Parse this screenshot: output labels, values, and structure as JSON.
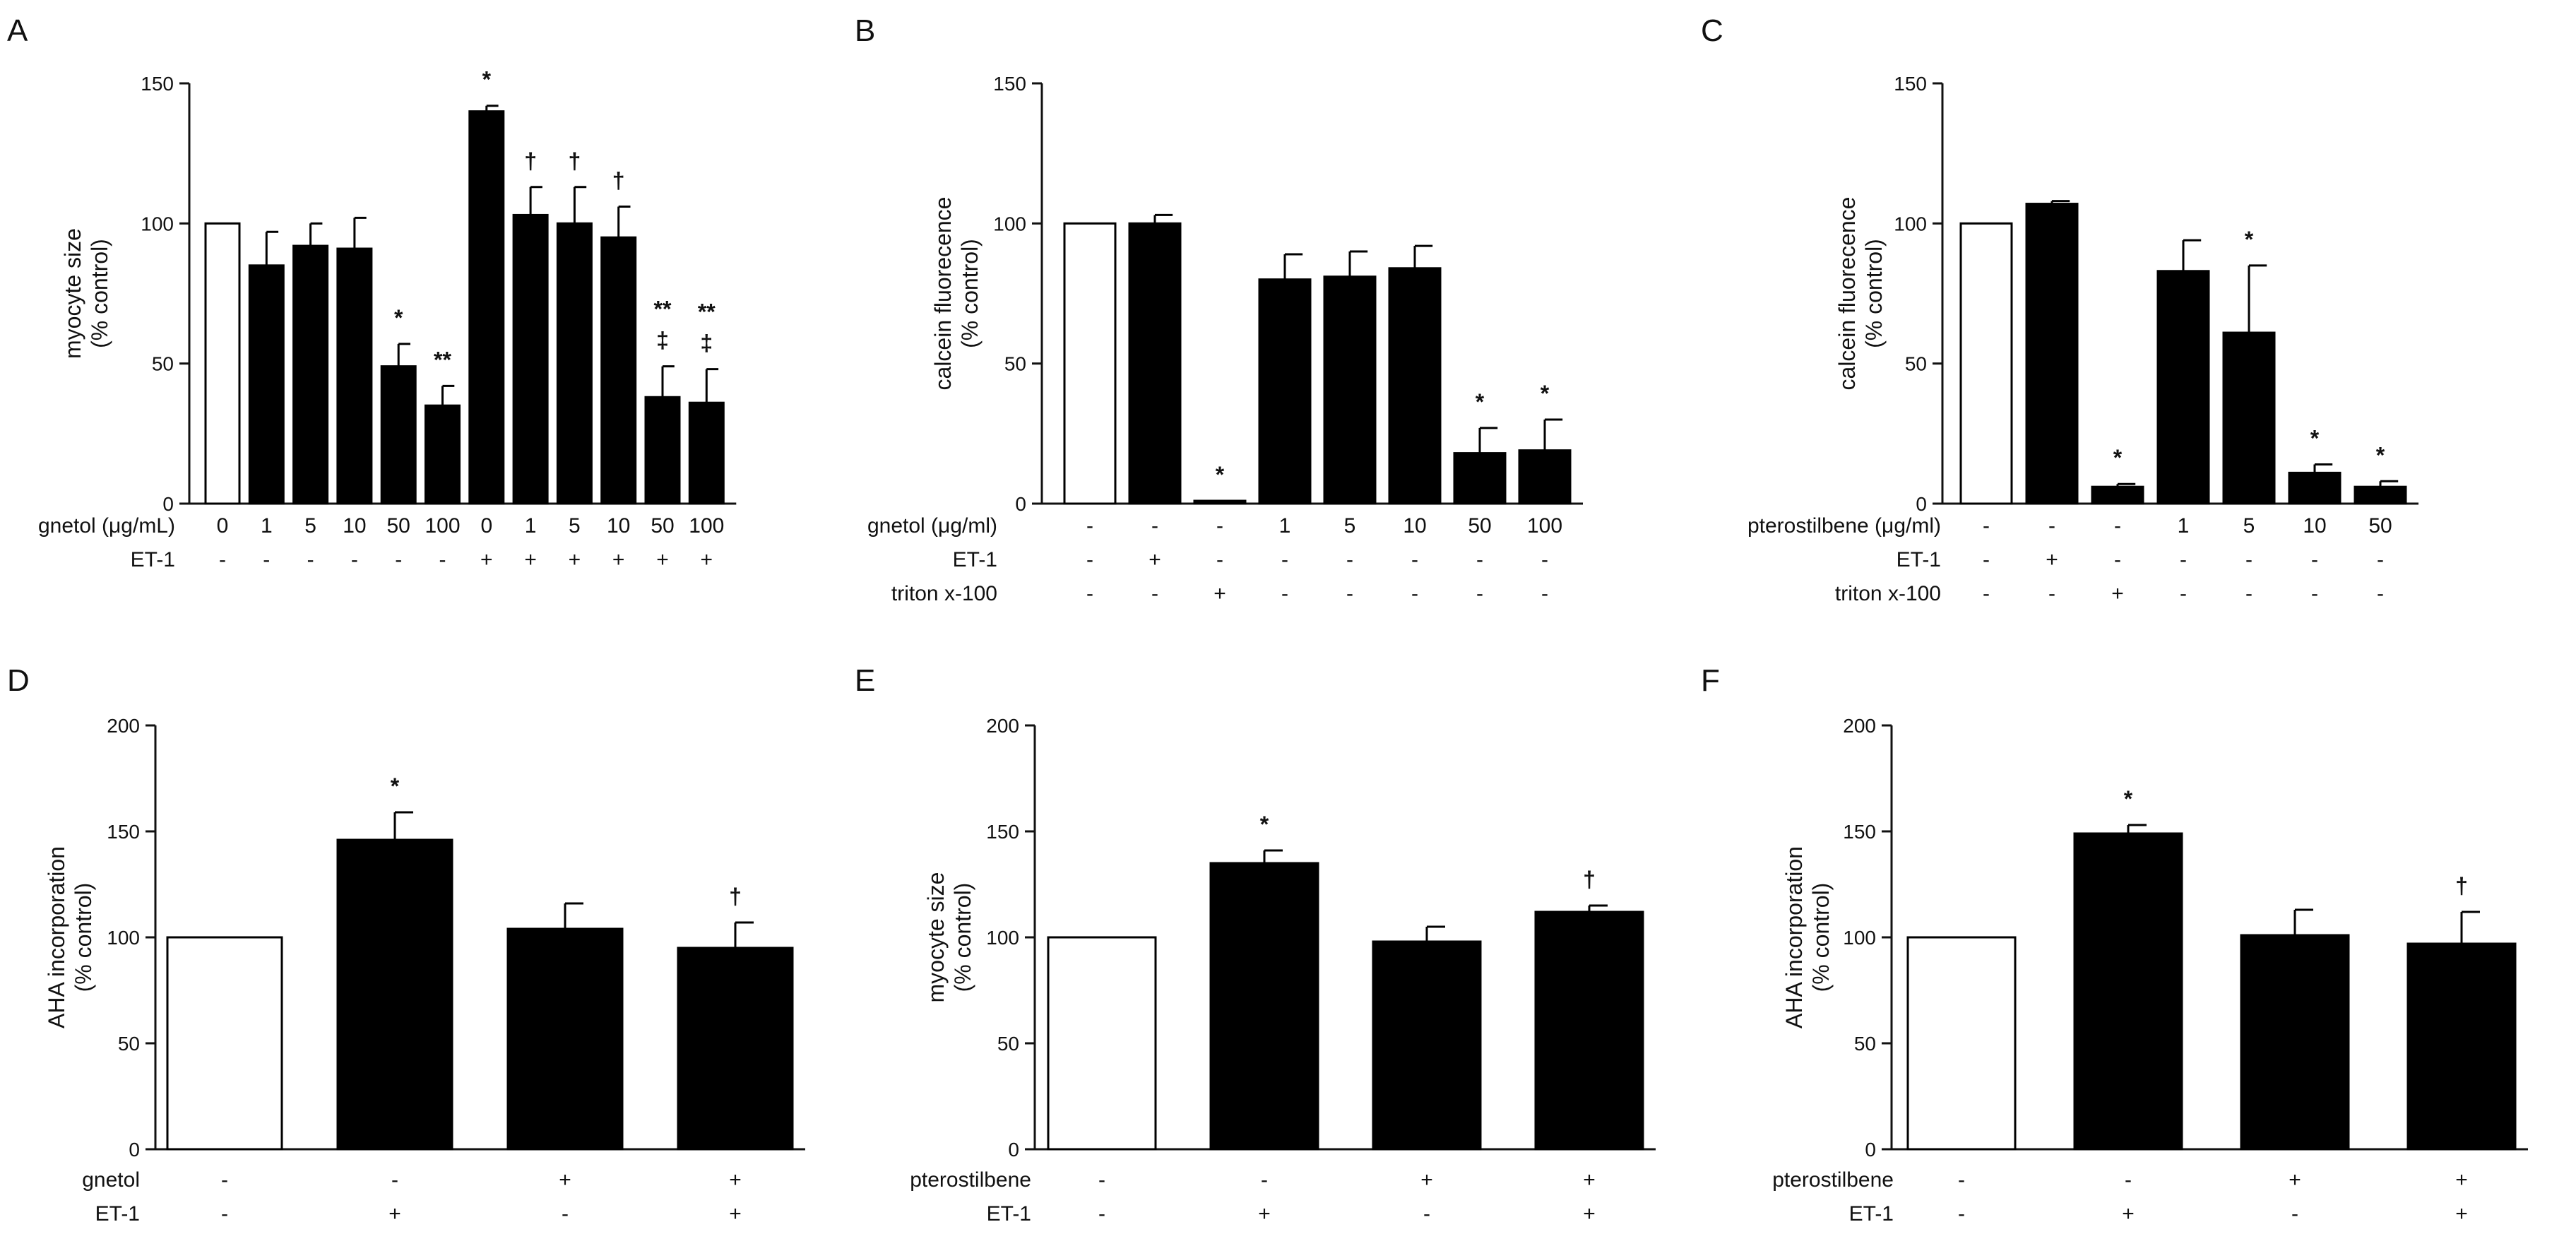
{
  "chart_data": [
    {
      "panel": "A",
      "type": "bar",
      "ylabel": "myocyte size\n(% control)",
      "ylim": [
        0,
        150
      ],
      "yticks": [
        0,
        50,
        100,
        150
      ],
      "values": [
        100,
        85,
        92,
        91,
        49,
        35,
        140,
        103,
        100,
        95,
        38,
        36
      ],
      "errors": [
        0,
        12,
        8,
        11,
        8,
        7,
        2,
        10,
        13,
        11,
        11,
        12
      ],
      "fills": [
        "white",
        "black",
        "black",
        "black",
        "black",
        "black",
        "black",
        "black",
        "black",
        "black",
        "black",
        "black"
      ],
      "annotations": [
        [
          ""
        ],
        [
          ""
        ],
        [
          ""
        ],
        [
          ""
        ],
        [
          "*"
        ],
        [
          "**"
        ],
        [
          "*"
        ],
        [
          "†"
        ],
        [
          "†"
        ],
        [
          "†"
        ],
        [
          "**",
          "‡"
        ],
        [
          "**",
          "‡"
        ]
      ],
      "rows": [
        {
          "label": "gnetol (μg/mL)",
          "values": [
            "0",
            "1",
            "5",
            "10",
            "50",
            "100",
            "0",
            "1",
            "5",
            "10",
            "50",
            "100"
          ]
        },
        {
          "label": "ET-1",
          "values": [
            "-",
            "-",
            "-",
            "-",
            "-",
            "-",
            "+",
            "+",
            "+",
            "+",
            "+",
            "+"
          ]
        }
      ]
    },
    {
      "panel": "B",
      "type": "bar",
      "ylabel": "calcein fluorecence\n(% control)",
      "ylim": [
        0,
        150
      ],
      "yticks": [
        0,
        50,
        100,
        150
      ],
      "values": [
        100,
        100,
        1,
        80,
        81,
        84,
        18,
        19
      ],
      "errors": [
        0,
        3,
        0,
        9,
        9,
        8,
        9,
        11
      ],
      "fills": [
        "white",
        "black",
        "black",
        "black",
        "black",
        "black",
        "black",
        "black"
      ],
      "annotations": [
        [
          ""
        ],
        [
          ""
        ],
        [
          "*"
        ],
        [
          ""
        ],
        [
          ""
        ],
        [
          ""
        ],
        [
          "*"
        ],
        [
          "*"
        ]
      ],
      "rows": [
        {
          "label": "gnetol (μg/ml)",
          "values": [
            "-",
            "-",
            "-",
            "1",
            "5",
            "10",
            "50",
            "100"
          ]
        },
        {
          "label": "ET-1",
          "values": [
            "-",
            "+",
            "-",
            "-",
            "-",
            "-",
            "-",
            "-"
          ]
        },
        {
          "label": "triton x-100",
          "values": [
            "-",
            "-",
            "+",
            "-",
            "-",
            "-",
            "-",
            "-"
          ]
        }
      ]
    },
    {
      "panel": "C",
      "type": "bar",
      "ylabel": "calcein fluorecence\n(% control)",
      "ylim": [
        0,
        150
      ],
      "yticks": [
        0,
        50,
        100,
        150
      ],
      "values": [
        100,
        107,
        6,
        83,
        61,
        11,
        6
      ],
      "errors": [
        0,
        1,
        1,
        11,
        24,
        3,
        2
      ],
      "fills": [
        "white",
        "black",
        "black",
        "black",
        "black",
        "black",
        "black"
      ],
      "annotations": [
        [
          ""
        ],
        [
          ""
        ],
        [
          "*"
        ],
        [
          ""
        ],
        [
          "*"
        ],
        [
          "*"
        ],
        [
          "*"
        ]
      ],
      "rows": [
        {
          "label": "pterostilbene (μg/ml)",
          "values": [
            "-",
            "-",
            "-",
            "1",
            "5",
            "10",
            "50"
          ]
        },
        {
          "label": "ET-1",
          "values": [
            "-",
            "+",
            "-",
            "-",
            "-",
            "-",
            "-"
          ]
        },
        {
          "label": "triton x-100",
          "values": [
            "-",
            "-",
            "+",
            "-",
            "-",
            "-",
            "-"
          ]
        }
      ]
    },
    {
      "panel": "D",
      "type": "bar",
      "ylabel": "AHA incorporation\n(% control)",
      "ylim": [
        0,
        200
      ],
      "yticks": [
        0,
        50,
        100,
        150,
        200
      ],
      "values": [
        100,
        146,
        104,
        95
      ],
      "errors": [
        0,
        13,
        12,
        12
      ],
      "fills": [
        "white",
        "black",
        "black",
        "black"
      ],
      "annotations": [
        [
          ""
        ],
        [
          "*"
        ],
        [
          ""
        ],
        [
          "†"
        ]
      ],
      "rows": [
        {
          "label": "gnetol",
          "values": [
            "-",
            "-",
            "+",
            "+"
          ]
        },
        {
          "label": "ET-1",
          "values": [
            "-",
            "+",
            "-",
            "+"
          ]
        }
      ]
    },
    {
      "panel": "E",
      "type": "bar",
      "ylabel": "myocyte size\n(% control)",
      "ylim": [
        0,
        200
      ],
      "yticks": [
        0,
        50,
        100,
        150,
        200
      ],
      "values": [
        100,
        135,
        98,
        112
      ],
      "errors": [
        0,
        6,
        7,
        3
      ],
      "fills": [
        "white",
        "black",
        "black",
        "black"
      ],
      "annotations": [
        [
          ""
        ],
        [
          "*"
        ],
        [
          ""
        ],
        [
          "†"
        ]
      ],
      "rows": [
        {
          "label": "pterostilbene",
          "values": [
            "-",
            "-",
            "+",
            "+"
          ]
        },
        {
          "label": "ET-1",
          "values": [
            "-",
            "+",
            "-",
            "+"
          ]
        }
      ]
    },
    {
      "panel": "F",
      "type": "bar",
      "ylabel": "AHA incorporation\n(% control)",
      "ylim": [
        0,
        200
      ],
      "yticks": [
        0,
        50,
        100,
        150,
        200
      ],
      "values": [
        100,
        149,
        101,
        97
      ],
      "errors": [
        0,
        4,
        12,
        15
      ],
      "fills": [
        "white",
        "black",
        "black",
        "black"
      ],
      "annotations": [
        [
          ""
        ],
        [
          "*"
        ],
        [
          ""
        ],
        [
          "†"
        ]
      ],
      "rows": [
        {
          "label": "pterostilbene",
          "values": [
            "-",
            "-",
            "+",
            "+"
          ]
        },
        {
          "label": "ET-1",
          "values": [
            "-",
            "+",
            "-",
            "+"
          ]
        }
      ]
    }
  ]
}
